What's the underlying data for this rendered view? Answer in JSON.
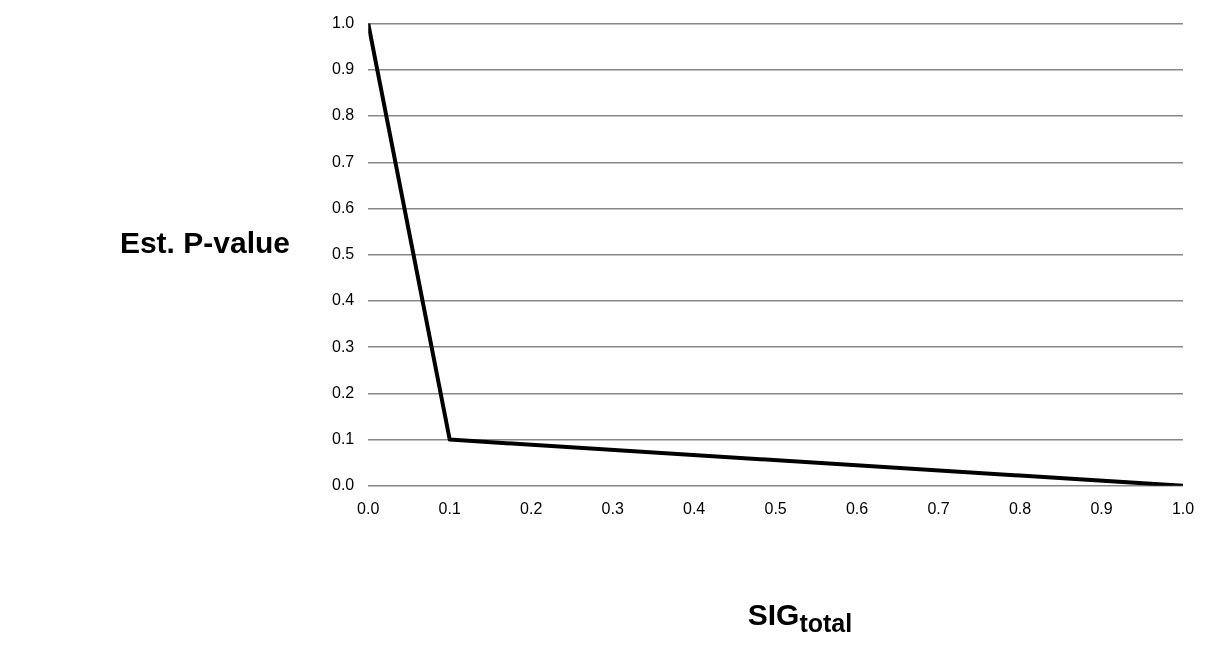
{
  "chart_data": {
    "type": "line",
    "xlabel": "SIG$_{total}$",
    "ylabel": "Est. P-value",
    "x": [
      0,
      0.1,
      1
    ],
    "series": [
      {
        "color": "#000000",
        "values": [
          1,
          0.1,
          0
        ]
      }
    ],
    "xlim": [
      0,
      1
    ],
    "xticks": [
      {
        "value": 0,
        "label": "0.0"
      },
      {
        "value": 0.1,
        "label": "0.1"
      },
      {
        "value": 0.2,
        "label": "0.2"
      },
      {
        "value": 0.3,
        "label": "0.3"
      },
      {
        "value": 0.4,
        "label": "0.4"
      },
      {
        "value": 0.5,
        "label": "0.5"
      },
      {
        "value": 0.6,
        "label": "0.6"
      },
      {
        "value": 0.7,
        "label": "0.7"
      },
      {
        "value": 0.8,
        "label": "0.8"
      },
      {
        "value": 0.9,
        "label": "0.9"
      },
      {
        "value": 1,
        "label": "1.0"
      }
    ],
    "ylim": [
      0,
      1
    ],
    "yticks": [
      {
        "value": 0,
        "label": "0.0"
      },
      {
        "value": 0.1,
        "label": "0.1"
      },
      {
        "value": 0.2,
        "label": "0.2"
      },
      {
        "value": 0.3,
        "label": "0.3"
      },
      {
        "value": 0.4,
        "label": "0.4"
      },
      {
        "value": 0.5,
        "label": "0.5"
      },
      {
        "value": 0.6,
        "label": "0.6"
      },
      {
        "value": 0.7,
        "label": "0.7"
      },
      {
        "value": 0.8,
        "label": "0.8"
      },
      {
        "value": 0.9,
        "label": "0.9"
      },
      {
        "value": 1,
        "label": "1.0"
      }
    ],
    "grid": "y",
    "legend": false,
    "marker": "none",
    "line_style": "solid"
  }
}
